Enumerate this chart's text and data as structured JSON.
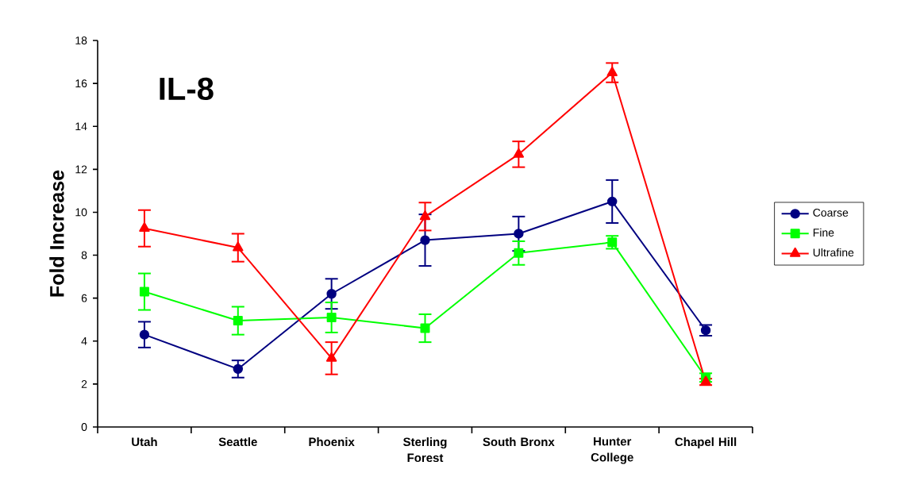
{
  "chart_data": {
    "type": "line",
    "title": "IL-8",
    "ylabel": "Fold Increase",
    "categories": [
      "Utah",
      "Seattle",
      "Phoenix",
      "Sterling Forest",
      "South Bronx",
      "Hunter College",
      "Chapel Hill"
    ],
    "series": [
      {
        "name": "Coarse",
        "color": "#000080",
        "marker": "circle",
        "values": [
          4.3,
          2.7,
          6.2,
          8.7,
          9.0,
          10.5,
          4.5
        ],
        "errors": [
          0.6,
          0.4,
          0.7,
          1.2,
          0.8,
          1.0,
          0.25
        ]
      },
      {
        "name": "Fine",
        "color": "#00ff00",
        "marker": "square",
        "values": [
          6.3,
          4.95,
          5.1,
          4.6,
          8.1,
          8.6,
          2.3
        ],
        "errors": [
          0.85,
          0.65,
          0.7,
          0.65,
          0.55,
          0.3,
          0.2
        ]
      },
      {
        "name": "Ultrafine",
        "color": "#ff0000",
        "marker": "triangle",
        "values": [
          9.25,
          8.35,
          3.2,
          9.8,
          12.7,
          16.5,
          2.1
        ],
        "errors": [
          0.85,
          0.65,
          0.75,
          0.65,
          0.6,
          0.45,
          0.15
        ]
      }
    ],
    "ylim": [
      0,
      18
    ],
    "yticks": [
      0,
      2,
      4,
      6,
      8,
      10,
      12,
      14,
      16,
      18
    ],
    "grid": false,
    "legend": "right",
    "line_style": "solid"
  }
}
